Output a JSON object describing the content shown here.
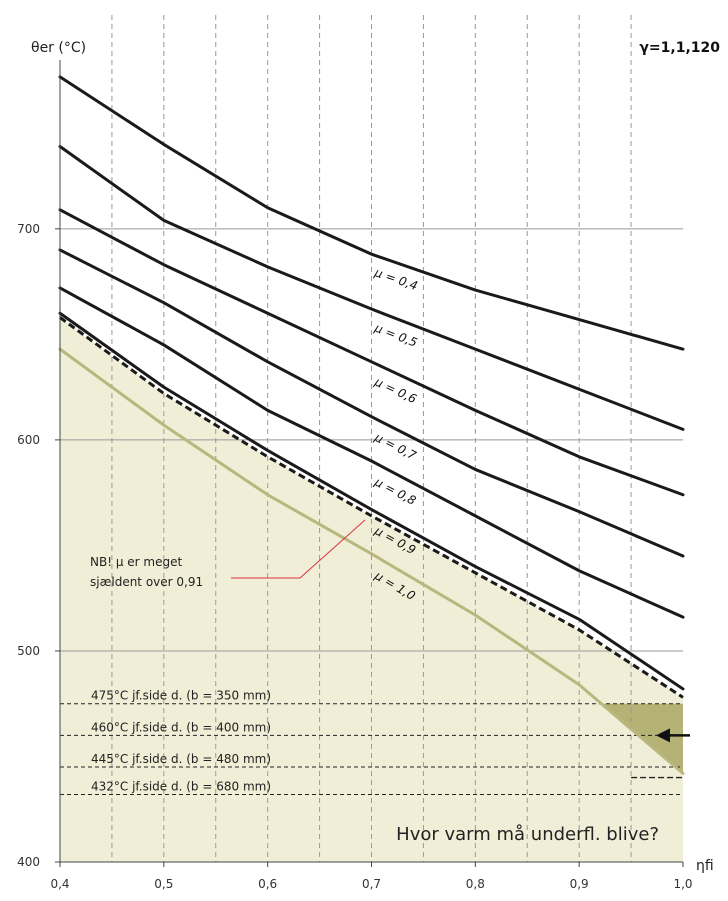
{
  "chart_data": {
    "type": "line",
    "title": "",
    "xlabel": "ηfi",
    "ylabel": "θer (°C)",
    "gamma_label": "γ=1,1,120",
    "xlim": [
      0.4,
      1.0
    ],
    "ylim": [
      400,
      780
    ],
    "x_ticks": [
      "0,4",
      "0,5",
      "0,6",
      "0,7",
      "0,8",
      "0,9",
      "1,0"
    ],
    "y_ticks": [
      "400",
      "500",
      "600",
      "700"
    ],
    "x_tick_values": [
      0.4,
      0.5,
      0.6,
      0.7,
      0.8,
      0.9,
      1.0
    ],
    "y_tick_values": [
      400,
      500,
      600,
      700
    ],
    "grid": {
      "vertical_dashed_every": 0.05,
      "horizontal_solid": [
        500,
        600,
        700
      ]
    },
    "series": [
      {
        "name": "μ = 0,4",
        "style": "solid",
        "color": "#1a1a1a",
        "x": [
          0.4,
          0.5,
          0.6,
          0.7,
          0.8,
          0.9,
          1.0
        ],
        "y": [
          772,
          740,
          710,
          688,
          671,
          657,
          643
        ]
      },
      {
        "name": "μ = 0,5",
        "style": "solid",
        "color": "#1a1a1a",
        "x": [
          0.4,
          0.5,
          0.6,
          0.7,
          0.8,
          0.9,
          1.0
        ],
        "y": [
          739,
          704,
          682,
          662,
          643,
          624,
          605
        ]
      },
      {
        "name": "μ = 0,6",
        "style": "solid",
        "color": "#1a1a1a",
        "x": [
          0.4,
          0.5,
          0.6,
          0.7,
          0.8,
          0.9,
          1.0
        ],
        "y": [
          709,
          683,
          660,
          637,
          614,
          592,
          574
        ]
      },
      {
        "name": "μ = 0,7",
        "style": "solid",
        "color": "#1a1a1a",
        "x": [
          0.4,
          0.5,
          0.6,
          0.7,
          0.8,
          0.9,
          1.0
        ],
        "y": [
          690,
          665,
          637,
          611,
          586,
          566,
          545
        ]
      },
      {
        "name": "μ = 0,8",
        "style": "solid",
        "color": "#1a1a1a",
        "x": [
          0.4,
          0.5,
          0.6,
          0.7,
          0.8,
          0.9,
          1.0
        ],
        "y": [
          672,
          645,
          614,
          590,
          564,
          538,
          516
        ]
      },
      {
        "name": "μ = 0,9",
        "style": "solid",
        "color": "#1a1a1a",
        "x": [
          0.4,
          0.5,
          0.6,
          0.7,
          0.8,
          0.9,
          1.0
        ],
        "y": [
          660,
          625,
          595,
          567,
          540,
          515,
          482
        ]
      },
      {
        "name": "",
        "style": "dashed",
        "color": "#1a1a1a",
        "x": [
          0.4,
          0.5,
          0.6,
          0.7,
          0.8,
          0.9,
          1.0
        ],
        "y": [
          658,
          622,
          592,
          564,
          537,
          510,
          478
        ]
      },
      {
        "name": "μ = 1,0",
        "style": "solid",
        "color": "#b9b77e",
        "x": [
          0.4,
          0.5,
          0.6,
          0.7,
          0.8,
          0.9,
          1.0
        ],
        "y": [
          643,
          607,
          574,
          546,
          517,
          484,
          442
        ]
      }
    ],
    "reference_lines": [
      {
        "y": 475,
        "label": "475°C jf.side d. (b = 350 mm)"
      },
      {
        "y": 460,
        "label": "460°C jf.side d. (b = 400 mm)"
      },
      {
        "y": 445,
        "label": "445°C jf.side d. (b = 480 mm)"
      },
      {
        "y": 432,
        "label": "432°C jf.side d. (b = 680 mm)"
      }
    ],
    "annotations": {
      "note_line1": "NB! μ er meget",
      "note_line2": "sjældent over 0,91",
      "question": "Hvor varm må underfl. blive?"
    },
    "colors": {
      "fill": "#f1eed7",
      "highlight": "#b5b276",
      "grid": "#999999",
      "note_line": "#d9323f",
      "axis": "#444444"
    }
  }
}
